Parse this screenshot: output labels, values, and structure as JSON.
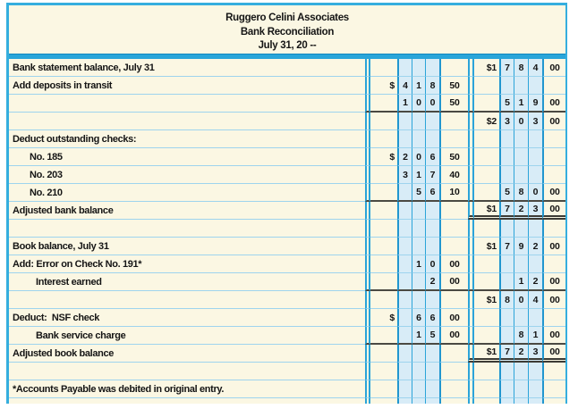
{
  "title": {
    "company": "Ruggero Celini Associates",
    "statement": "Bank Reconciliation",
    "date": "July 31, 20 --"
  },
  "colors": {
    "paper": "#fbf7e3",
    "column_fill": "#d8ecf7",
    "grid_cyan": "#2ba4d9",
    "border_band": "#35aede",
    "total_rule": "#4a4942",
    "text": "#151515"
  },
  "rows": [
    {
      "desc": "Bank statement balance, July 31",
      "indent": 0,
      "mid": [
        "",
        "",
        "",
        "",
        ""
      ],
      "right": [
        "$1",
        "7",
        "8",
        "4",
        "00"
      ],
      "rule": "none"
    },
    {
      "desc": "Add deposits in transit",
      "indent": 0,
      "mid": [
        "$",
        "4",
        "1",
        "8",
        "50"
      ],
      "right": [
        "",
        "",
        "",
        "",
        ""
      ],
      "rule": "none"
    },
    {
      "desc": "",
      "indent": 0,
      "mid": [
        "",
        "1",
        "0",
        "0",
        "50"
      ],
      "right": [
        "",
        "5",
        "1",
        "9",
        "00"
      ],
      "rule": "single"
    },
    {
      "desc": "",
      "indent": 0,
      "mid": [
        "",
        "",
        "",
        "",
        ""
      ],
      "right": [
        "$2",
        "3",
        "0",
        "3",
        "00"
      ],
      "rule": "none"
    },
    {
      "desc": "Deduct outstanding checks:",
      "indent": 0,
      "mid": [
        "",
        "",
        "",
        "",
        ""
      ],
      "right": [
        "",
        "",
        "",
        "",
        ""
      ],
      "rule": "none"
    },
    {
      "desc": "No. 185",
      "indent": 1,
      "mid": [
        "$",
        "2",
        "0",
        "6",
        "50"
      ],
      "right": [
        "",
        "",
        "",
        "",
        ""
      ],
      "rule": "none"
    },
    {
      "desc": "No. 203",
      "indent": 1,
      "mid": [
        "",
        "3",
        "1",
        "7",
        "40"
      ],
      "right": [
        "",
        "",
        "",
        "",
        ""
      ],
      "rule": "none"
    },
    {
      "desc": "No. 210",
      "indent": 1,
      "mid": [
        "",
        "",
        "5",
        "6",
        "10"
      ],
      "right": [
        "",
        "5",
        "8",
        "0",
        "00"
      ],
      "rule": "single"
    },
    {
      "desc": "Adjusted bank balance",
      "indent": 0,
      "mid": [
        "",
        "",
        "",
        "",
        ""
      ],
      "right": [
        "$1",
        "7",
        "2",
        "3",
        "00"
      ],
      "rule": "double"
    },
    {
      "desc": "",
      "indent": 0,
      "mid": [
        "",
        "",
        "",
        "",
        ""
      ],
      "right": [
        "",
        "",
        "",
        "",
        ""
      ],
      "rule": "none"
    },
    {
      "desc": "Book balance, July 31",
      "indent": 0,
      "mid": [
        "",
        "",
        "",
        "",
        ""
      ],
      "right": [
        "$1",
        "7",
        "9",
        "2",
        "00"
      ],
      "rule": "none"
    },
    {
      "desc": "Add: Error on Check No. 191*",
      "indent": 0,
      "mid": [
        "",
        "",
        "1",
        "0",
        "00"
      ],
      "right": [
        "",
        "",
        "",
        "",
        ""
      ],
      "rule": "none"
    },
    {
      "desc": "Interest earned",
      "indent": 2,
      "mid": [
        "",
        "",
        "",
        "2",
        "00"
      ],
      "right": [
        "",
        "",
        "1",
        "2",
        "00"
      ],
      "rule": "single"
    },
    {
      "desc": "",
      "indent": 0,
      "mid": [
        "",
        "",
        "",
        "",
        ""
      ],
      "right": [
        "$1",
        "8",
        "0",
        "4",
        "00"
      ],
      "rule": "none"
    },
    {
      "desc": "Deduct:  NSF check",
      "indent": 0,
      "mid": [
        "$",
        "",
        "6",
        "6",
        "00"
      ],
      "right": [
        "",
        "",
        "",
        "",
        ""
      ],
      "rule": "none"
    },
    {
      "desc": "Bank service charge",
      "indent": 2,
      "mid": [
        "",
        "",
        "1",
        "5",
        "00"
      ],
      "right": [
        "",
        "",
        "8",
        "1",
        "00"
      ],
      "rule": "single"
    },
    {
      "desc": "Adjusted book balance",
      "indent": 0,
      "mid": [
        "",
        "",
        "",
        "",
        ""
      ],
      "right": [
        "$1",
        "7",
        "2",
        "3",
        "00"
      ],
      "rule": "double"
    },
    {
      "desc": "",
      "indent": 0,
      "mid": [
        "",
        "",
        "",
        "",
        ""
      ],
      "right": [
        "",
        "",
        "",
        "",
        ""
      ],
      "rule": "none"
    },
    {
      "desc": "*Accounts Payable was debited in original entry.",
      "indent": 0,
      "mid": [
        "",
        "",
        "",
        "",
        ""
      ],
      "right": [
        "",
        "",
        "",
        "",
        ""
      ],
      "rule": "none"
    },
    {
      "desc": "",
      "indent": 0,
      "mid": [
        "",
        "",
        "",
        "",
        ""
      ],
      "right": [
        "",
        "",
        "",
        "",
        ""
      ],
      "rule": "none",
      "partial": true
    }
  ]
}
